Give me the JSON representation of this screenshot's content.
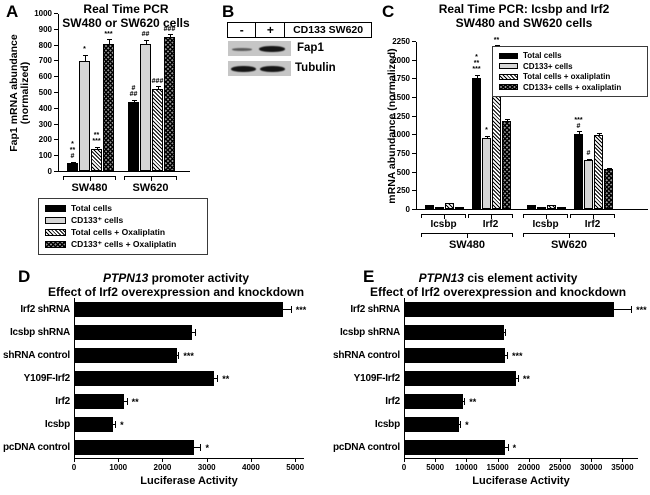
{
  "panel_a": {
    "label": "A"
  },
  "panel_b": {
    "label": "B",
    "minus": "-",
    "plus": "+",
    "condition": "CD133 SW620",
    "rows": [
      {
        "protein": "Fap1",
        "band_left": "weak",
        "band_right": "strong"
      },
      {
        "protein": "Tubulin",
        "band_left": "strong",
        "band_right": "strong"
      }
    ]
  },
  "panel_c": {
    "label": "C"
  },
  "panel_d": {
    "label": "D"
  },
  "panel_e": {
    "label": "E"
  },
  "chart_data": [
    {
      "name": "panel_a",
      "type": "bar",
      "title": "Real Time PCR",
      "subtitle": "SW480 or SW620 cells",
      "ylabel": "Fap1 mRNA abundance (normalized)",
      "ylabel_lines": [
        "Fap1 mRNA abundance",
        "(normalized)"
      ],
      "ylim": [
        0,
        1000
      ],
      "ytick_step": 100,
      "grid": false,
      "legend_position": "below-left",
      "groups": [
        "SW480",
        "SW620"
      ],
      "bracket_levels": [
        {
          "top": 2,
          "label_top": 8,
          "fs": 11,
          "items": [
            {
              "span": [
                0,
                0
              ],
              "label": "SW480"
            },
            {
              "span": [
                1,
                1
              ],
              "label": "SW620"
            }
          ]
        }
      ],
      "series": [
        {
          "name": "Total cells",
          "pattern": "solid",
          "values": [
            50,
            435
          ],
          "errors": [
            10,
            15
          ],
          "annotations": [
            [
              "*",
              "**",
              "#"
            ],
            [
              "#",
              "##"
            ]
          ]
        },
        {
          "name": "CD133⁺ cells",
          "pattern": "gray",
          "values": [
            695,
            805
          ],
          "errors": [
            40,
            25
          ],
          "annotations": [
            [
              "*"
            ],
            [
              "##"
            ]
          ]
        },
        {
          "name": "Total cells + Oxaliplatin",
          "pattern": "hatch",
          "values": [
            140,
            520
          ],
          "errors": [
            12,
            18
          ],
          "annotations": [
            [
              "**",
              "***"
            ],
            [
              "###"
            ]
          ]
        },
        {
          "name": "CD133⁺ cells + Oxaliplatin",
          "pattern": "check",
          "values": [
            805,
            850
          ],
          "errors": [
            30,
            15
          ],
          "annotations": [
            [
              "***"
            ],
            [
              "###"
            ]
          ]
        }
      ]
    },
    {
      "name": "panel_c",
      "type": "bar",
      "title": "Real Time PCR: Icsbp and Irf2",
      "subtitle": "SW480 and SW620 cells",
      "ylabel": "mRNA abundance (normalized)",
      "ylabel_lines": [
        "mRNA abundance (normalized)"
      ],
      "ylim": [
        0,
        2250
      ],
      "ytick_step": 250,
      "grid": false,
      "legend_position": "top-right-inside",
      "groups": [
        "Icsbp",
        "Irf2",
        "Icsbp",
        "Irf2"
      ],
      "bracket_levels": [
        {
          "top": 2,
          "label_top": 7,
          "fs": 10,
          "items": [
            {
              "span": [
                0,
                0
              ],
              "label": "Icsbp"
            },
            {
              "span": [
                1,
                1
              ],
              "label": "Irf2"
            },
            {
              "span": [
                2,
                2
              ],
              "label": "Icsbp"
            },
            {
              "span": [
                3,
                3
              ],
              "label": "Irf2"
            }
          ]
        },
        {
          "top": 21,
          "label_top": 27,
          "fs": 11,
          "items": [
            {
              "span": [
                0,
                1
              ],
              "label": "SW480"
            },
            {
              "span": [
                2,
                3
              ],
              "label": "SW620"
            }
          ]
        }
      ],
      "series": [
        {
          "name": "Total cells",
          "pattern": "solid",
          "values": [
            50,
            1760,
            60,
            1010
          ],
          "errors": [
            5,
            40,
            5,
            30
          ],
          "annotations": [
            [],
            [
              "*",
              "**",
              "***"
            ],
            [],
            [
              "***",
              "#"
            ]
          ]
        },
        {
          "name": "CD133+ cells",
          "pattern": "gray",
          "values": [
            12,
            950,
            12,
            650
          ],
          "errors": [
            3,
            30,
            3,
            20
          ],
          "annotations": [
            [],
            [
              "*"
            ],
            [],
            [
              "#"
            ]
          ]
        },
        {
          "name": "Total cells + oxaliplatin",
          "pattern": "hatch",
          "values": [
            75,
            2160,
            60,
            990
          ],
          "errors": [
            5,
            35,
            5,
            25
          ],
          "annotations": [
            [],
            [
              "**"
            ],
            [],
            []
          ]
        },
        {
          "name": "CD133+ cells + oxaliplatin",
          "pattern": "check",
          "values": [
            20,
            1180,
            20,
            530
          ],
          "errors": [
            3,
            25,
            3,
            15
          ],
          "annotations": [
            [],
            [],
            [],
            []
          ]
        }
      ]
    },
    {
      "name": "panel_d",
      "type": "bar-horizontal",
      "title_italic": "PTPN13",
      "title_rest": " promoter activity",
      "subtitle": "Effect of Irf2 overexpression and knockdown",
      "xlabel": "Luciferase Activity",
      "xlim": [
        0,
        5200
      ],
      "xticks": [
        0,
        1000,
        2000,
        3000,
        4000,
        5000
      ],
      "grid": false,
      "categories": [
        "Irf2 shRNA",
        "Icsbp shRNA",
        "shRNA control",
        "Y109F-Irf2",
        "Irf2",
        "Icsbp",
        "pcDNA control"
      ],
      "values": [
        4700,
        2650,
        2300,
        3150,
        1100,
        850,
        2700
      ],
      "errors": [
        200,
        90,
        60,
        90,
        90,
        80,
        160
      ],
      "annotations": [
        "***",
        "",
        "***",
        "**",
        "**",
        "*",
        "*"
      ]
    },
    {
      "name": "panel_e",
      "type": "bar-horizontal",
      "title_italic": "PTPN13",
      "title_rest": " cis element activity",
      "subtitle": "Effect of Irf2 overexpression and knockdown",
      "xlabel": "Luciferase Activity",
      "xlim": [
        0,
        37500
      ],
      "xticks": [
        0,
        5000,
        10000,
        15000,
        20000,
        25000,
        30000,
        35000
      ],
      "grid": false,
      "categories": [
        "Irf2 shRNA",
        "Icsbp shRNA",
        "shRNA control",
        "Y109F-Irf2",
        "Irf2",
        "Icsbp",
        "pcDNA control"
      ],
      "values": [
        33500,
        15800,
        16000,
        17800,
        9300,
        8700,
        16000
      ],
      "errors": [
        2900,
        350,
        500,
        450,
        350,
        300,
        600
      ],
      "annotations": [
        "***",
        "",
        "***",
        "**",
        "**",
        "*",
        "*"
      ]
    }
  ]
}
